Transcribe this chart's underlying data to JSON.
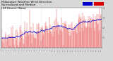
{
  "title": "Milwaukee Weather Wind Direction\nNormalized and Median\n(24 Hours) (New)",
  "title_fontsize": 3.0,
  "background_color": "#d8d8d8",
  "plot_bg_color": "#ffffff",
  "bar_color": "#dd0000",
  "median_color": "#0000cc",
  "ylim": [
    0,
    360
  ],
  "yticks": [
    90,
    180,
    270,
    360
  ],
  "ytick_labels": [
    "1",
    "2",
    "3",
    "4"
  ],
  "n_bars": 200,
  "seed": 7,
  "legend_colors": [
    "#0000cc",
    "#dd0000"
  ]
}
